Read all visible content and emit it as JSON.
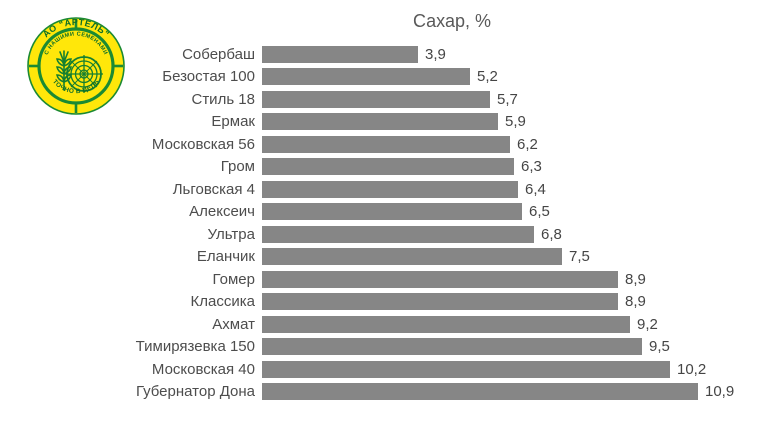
{
  "logo": {
    "company_arc_text": "АО \"АРТЕЛЬ\"",
    "inner_arc_top_text": "С НАШИМИ СЕМЕНАМИ",
    "inner_arc_bottom_text": "ТОЧНО В ЦЕЛЬ",
    "colors": {
      "yellow": "#ffe70a",
      "green": "#1b8a33",
      "text_green": "#0e6e28"
    }
  },
  "chart_data": {
    "type": "bar",
    "orientation": "horizontal",
    "title": "Сахар, %",
    "categories": [
      "Собербаш",
      "Безостая 100",
      "Стиль 18",
      "Ермак",
      "Московская 56",
      "Гром",
      "Льговская 4",
      "Алексеич",
      "Ультра",
      "Еланчик",
      "Гомер",
      "Классика",
      "Ахмат",
      "Тимирязевка 150",
      "Московская 40",
      "Губернатор Дона"
    ],
    "values": [
      3.9,
      5.2,
      5.7,
      5.9,
      6.2,
      6.3,
      6.4,
      6.5,
      6.8,
      7.5,
      8.9,
      8.9,
      9.2,
      9.5,
      10.2,
      10.9
    ],
    "value_labels": [
      "3,9",
      "5,2",
      "5,7",
      "5,9",
      "6,2",
      "6,3",
      "6,4",
      "6,5",
      "6,8",
      "7,5",
      "8,9",
      "8,9",
      "9,2",
      "9,5",
      "10,2",
      "10,9"
    ],
    "xlabel": "",
    "ylabel": "",
    "xlim": [
      0,
      11
    ],
    "grid": false,
    "legend": false,
    "bar_color": "#868686",
    "value_labels_position": "outside-end",
    "sort_order": "ascending"
  }
}
